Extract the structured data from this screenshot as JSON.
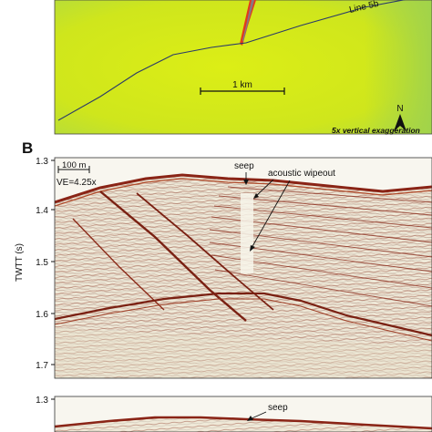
{
  "panel_a": {
    "line_label": "Line 5b",
    "scale_label": "1 km",
    "north_label": "N",
    "exaggeration_label": "5x vertical exaggeration"
  },
  "panel_b": {
    "panel_letter": "B",
    "y_axis_label": "TWTT (s)",
    "y_ticks": [
      "1.3",
      "1.4",
      "1.5",
      "1.6",
      "1.7"
    ],
    "scale_bar_label": "100 m",
    "ve_label": "VE=4.25x",
    "seep_label": "seep",
    "wipeout_label": "acoustic wipeout"
  },
  "panel_c": {
    "y_tick_top": "1.3",
    "seep_label": "seep"
  },
  "colors": {
    "map_yellow": "#d6ea12",
    "map_green": "#a8d84a",
    "seismic_red": "#9a2618",
    "seismic_bg": "#eee8d6"
  }
}
